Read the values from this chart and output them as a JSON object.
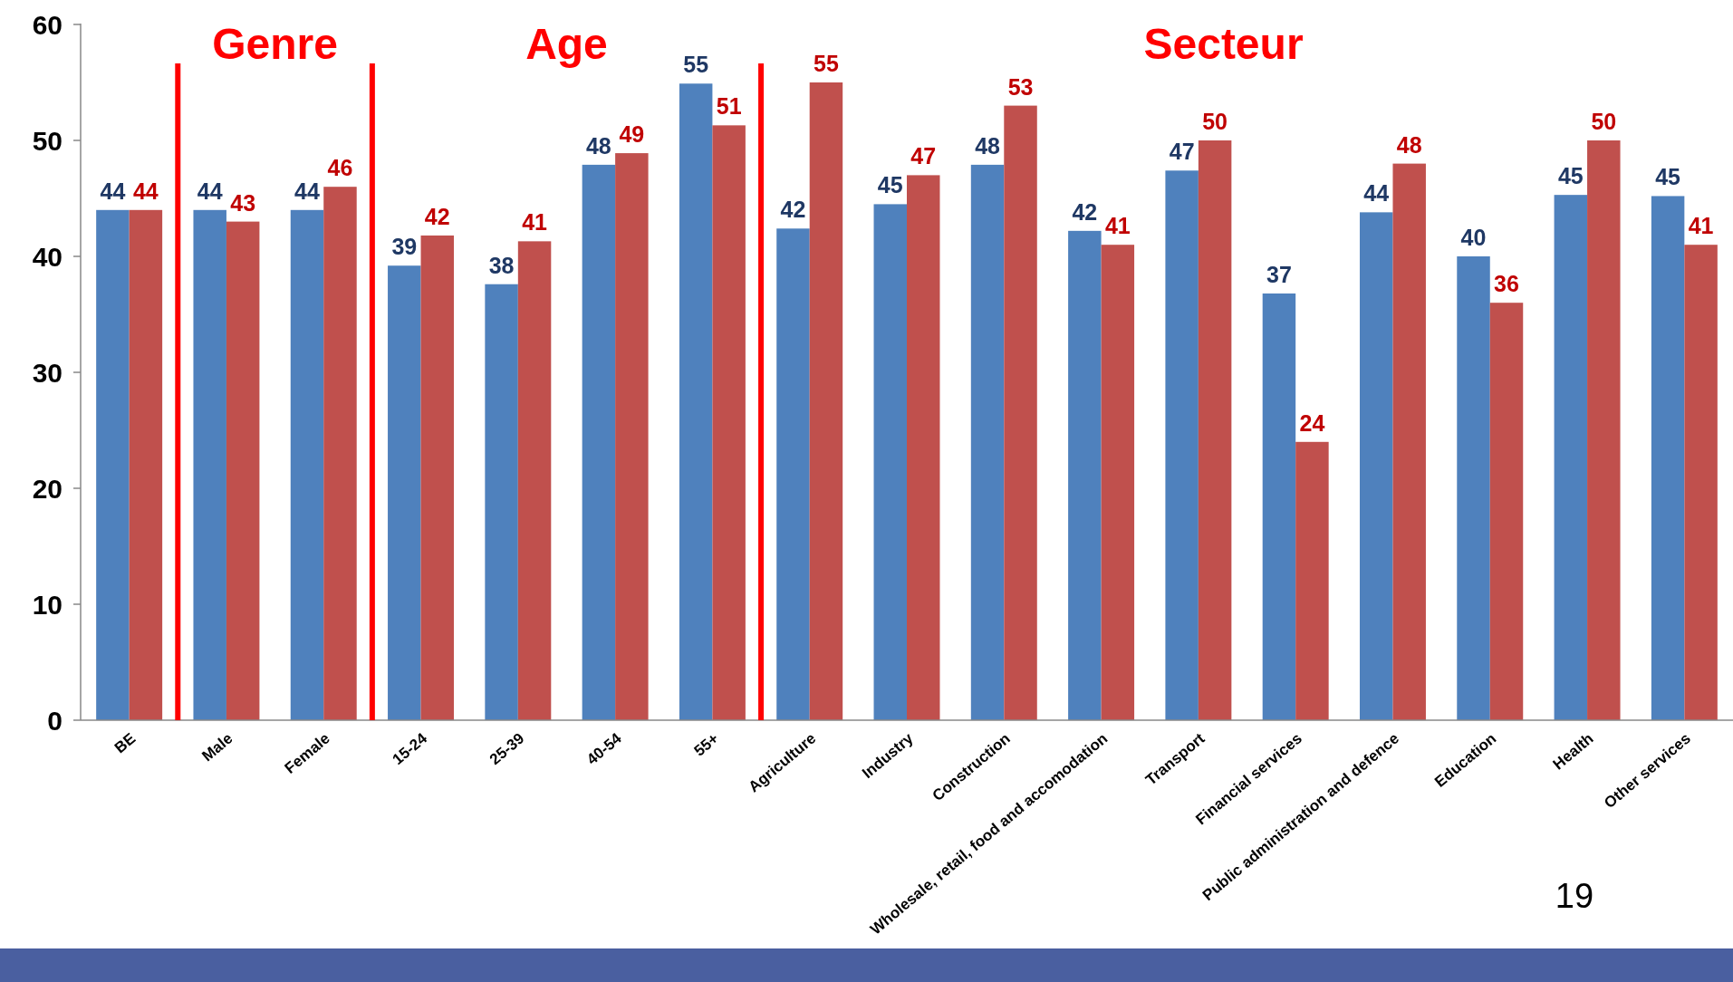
{
  "chart_data": {
    "type": "bar",
    "categories": [
      "BE",
      "Male",
      "Female",
      "15-24",
      "25-39",
      "40-54",
      "55+",
      "Agriculture",
      "Industry",
      "Construction",
      "Wholesale, retail, food and accomodation",
      "Transport",
      "Financial services",
      "Public administration and defence",
      "Education",
      "Health",
      "Other services"
    ],
    "series": [
      {
        "color": "#4f81bd",
        "values": [
          44,
          44,
          44,
          39.2,
          37.6,
          47.9,
          54.9,
          42.4,
          44.5,
          47.9,
          42.2,
          47.4,
          36.8,
          43.8,
          40,
          45.3,
          45.2
        ],
        "value_labels": [
          "44",
          "44",
          "44",
          "39",
          "38",
          "48",
          "55",
          "42",
          "45",
          "48",
          "42",
          "47",
          "37",
          "44",
          "40",
          "45",
          "45"
        ]
      },
      {
        "color": "#c0504d",
        "values": [
          44,
          43,
          46,
          41.8,
          41.3,
          48.9,
          51.3,
          55,
          47,
          53,
          41,
          50,
          24,
          48,
          36,
          50,
          41
        ],
        "value_labels": [
          "44",
          "43",
          "46",
          "42",
          "41",
          "49",
          "51",
          "55",
          "47",
          "53",
          "41",
          "50",
          "24",
          "48",
          "36",
          "50",
          "41"
        ]
      }
    ],
    "ylim": [
      0,
      60
    ],
    "yticks": [
      0,
      10,
      20,
      30,
      40,
      50,
      60
    ],
    "grid": false,
    "annotations": [
      "Genre",
      "Age",
      "Secteur",
      "19"
    ]
  }
}
